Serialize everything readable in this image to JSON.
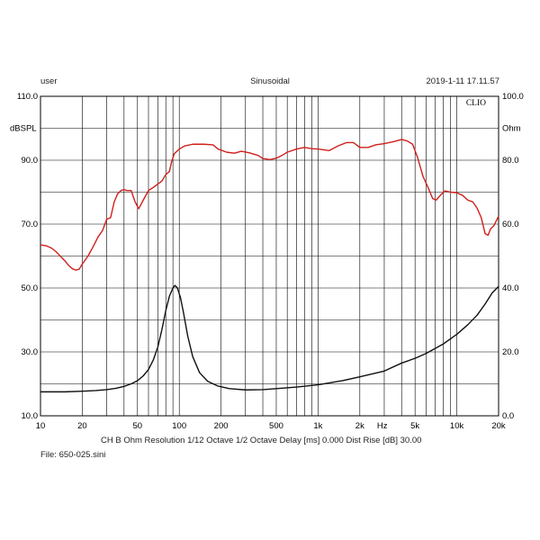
{
  "header": {
    "user": "user",
    "mode": "Sinusoidal",
    "timestamp": "2019-1-11 17.11.57"
  },
  "clio_label": "CLIO",
  "footer": {
    "settings": "CH B   Ohm   Resolution 1/12 Octave   1/2 Octave   Delay [ms] 0.000   Dist Rise [dB] 30.00",
    "file": "File: 650-025.sini"
  },
  "colors": {
    "spl": "#d0201c",
    "impedance": "#111111",
    "grid": "#000000"
  },
  "chart_data": {
    "type": "line",
    "x_scale": "log",
    "xlim": [
      10,
      20000
    ],
    "x_ticks": [
      {
        "v": 10,
        "label": "10"
      },
      {
        "v": 20,
        "label": "20"
      },
      {
        "v": 50,
        "label": "50"
      },
      {
        "v": 100,
        "label": "100"
      },
      {
        "v": 200,
        "label": "200"
      },
      {
        "v": 500,
        "label": "500"
      },
      {
        "v": 1000,
        "label": "1k"
      },
      {
        "v": 2000,
        "label": "2k"
      },
      {
        "v": 5000,
        "label": "5k"
      },
      {
        "v": 10000,
        "label": "10k"
      },
      {
        "v": 20000,
        "label": "20k"
      }
    ],
    "x_unit": "Hz",
    "left_axis": {
      "label": "dBSPL",
      "ylim": [
        10,
        110
      ],
      "ticks": [
        {
          "v": 110,
          "label": "110.0"
        },
        {
          "v": 90,
          "label": "90.0"
        },
        {
          "v": 70,
          "label": "70.0"
        },
        {
          "v": 50,
          "label": "50.0"
        },
        {
          "v": 30,
          "label": "30.0"
        },
        {
          "v": 10,
          "label": "10.0"
        }
      ]
    },
    "right_axis": {
      "label": "Ohm",
      "ylim": [
        0,
        100
      ],
      "ticks": [
        {
          "v": 100,
          "label": "100.0"
        },
        {
          "v": 80,
          "label": "80.0"
        },
        {
          "v": 60,
          "label": "60.0"
        },
        {
          "v": 40,
          "label": "40.0"
        },
        {
          "v": 20,
          "label": "20.0"
        },
        {
          "v": 0,
          "label": "0.0"
        }
      ]
    },
    "grid": true,
    "series": [
      {
        "axis": "left",
        "color": "#d0201c",
        "points": [
          [
            10,
            63.5
          ],
          [
            11,
            63.2
          ],
          [
            12,
            62.5
          ],
          [
            13,
            61.3
          ],
          [
            14,
            59.8
          ],
          [
            15,
            58.5
          ],
          [
            16,
            57.0
          ],
          [
            17,
            56.0
          ],
          [
            18,
            55.6
          ],
          [
            19,
            55.9
          ],
          [
            20,
            57.5
          ],
          [
            22,
            60
          ],
          [
            24,
            63
          ],
          [
            26,
            66
          ],
          [
            28,
            68
          ],
          [
            30,
            71.5
          ],
          [
            32,
            72
          ],
          [
            34,
            77
          ],
          [
            36,
            79.5
          ],
          [
            38,
            80.5
          ],
          [
            40,
            80.8
          ],
          [
            42,
            80.5
          ],
          [
            45,
            80.5
          ],
          [
            48,
            77
          ],
          [
            51,
            74.8
          ],
          [
            55,
            77.5
          ],
          [
            60,
            80.5
          ],
          [
            65,
            81.5
          ],
          [
            70,
            82.5
          ],
          [
            75,
            83.5
          ],
          [
            80,
            85.5
          ],
          [
            85,
            86.5
          ],
          [
            88,
            89.5
          ],
          [
            92,
            92
          ],
          [
            100,
            93.5
          ],
          [
            110,
            94.5
          ],
          [
            125,
            95
          ],
          [
            150,
            95
          ],
          [
            175,
            94.8
          ],
          [
            190,
            93.5
          ],
          [
            220,
            92.5
          ],
          [
            250,
            92.2
          ],
          [
            280,
            92.8
          ],
          [
            320,
            92.3
          ],
          [
            370,
            91.5
          ],
          [
            400,
            90.5
          ],
          [
            450,
            90.2
          ],
          [
            500,
            90.6
          ],
          [
            550,
            91.5
          ],
          [
            600,
            92.5
          ],
          [
            700,
            93.5
          ],
          [
            800,
            94
          ],
          [
            900,
            93.6
          ],
          [
            1000,
            93.5
          ],
          [
            1200,
            93
          ],
          [
            1400,
            94.5
          ],
          [
            1600,
            95.5
          ],
          [
            1800,
            95.5
          ],
          [
            2000,
            94
          ],
          [
            2300,
            94
          ],
          [
            2600,
            94.8
          ],
          [
            3000,
            95.2
          ],
          [
            3500,
            95.8
          ],
          [
            4000,
            96.5
          ],
          [
            4400,
            96
          ],
          [
            4800,
            95
          ],
          [
            5200,
            91
          ],
          [
            5700,
            85
          ],
          [
            6200,
            81.5
          ],
          [
            6700,
            78
          ],
          [
            7100,
            77.5
          ],
          [
            7600,
            79
          ],
          [
            8200,
            80.4
          ],
          [
            9000,
            80
          ],
          [
            10000,
            79.8
          ],
          [
            11000,
            79
          ],
          [
            12000,
            77.5
          ],
          [
            13000,
            77
          ],
          [
            14000,
            75
          ],
          [
            15000,
            72
          ],
          [
            16000,
            67
          ],
          [
            16800,
            66.5
          ],
          [
            17500,
            68.5
          ],
          [
            18500,
            69.5
          ],
          [
            20000,
            72.5
          ]
        ]
      },
      {
        "axis": "right",
        "color": "#111111",
        "points": [
          [
            10,
            7.5
          ],
          [
            15,
            7.5
          ],
          [
            20,
            7.7
          ],
          [
            25,
            7.9
          ],
          [
            30,
            8.2
          ],
          [
            35,
            8.6
          ],
          [
            40,
            9.2
          ],
          [
            45,
            10
          ],
          [
            50,
            11
          ],
          [
            55,
            12.5
          ],
          [
            60,
            14.5
          ],
          [
            65,
            17.5
          ],
          [
            70,
            21.5
          ],
          [
            75,
            27
          ],
          [
            80,
            33
          ],
          [
            85,
            37.5
          ],
          [
            90,
            40
          ],
          [
            93,
            40.8
          ],
          [
            97,
            40
          ],
          [
            102,
            37
          ],
          [
            107,
            32.5
          ],
          [
            115,
            25
          ],
          [
            125,
            18.5
          ],
          [
            140,
            13.5
          ],
          [
            160,
            10.8
          ],
          [
            190,
            9.3
          ],
          [
            230,
            8.5
          ],
          [
            300,
            8.1
          ],
          [
            400,
            8.2
          ],
          [
            500,
            8.5
          ],
          [
            700,
            9
          ],
          [
            1000,
            9.7
          ],
          [
            1500,
            11
          ],
          [
            2000,
            12.2
          ],
          [
            3000,
            14
          ],
          [
            4000,
            16.5
          ],
          [
            5000,
            18
          ],
          [
            6000,
            19.5
          ],
          [
            8000,
            22.5
          ],
          [
            10000,
            25.5
          ],
          [
            12000,
            28.5
          ],
          [
            14000,
            31.5
          ],
          [
            16000,
            35
          ],
          [
            18000,
            38.5
          ],
          [
            20000,
            40.5
          ]
        ]
      }
    ]
  }
}
